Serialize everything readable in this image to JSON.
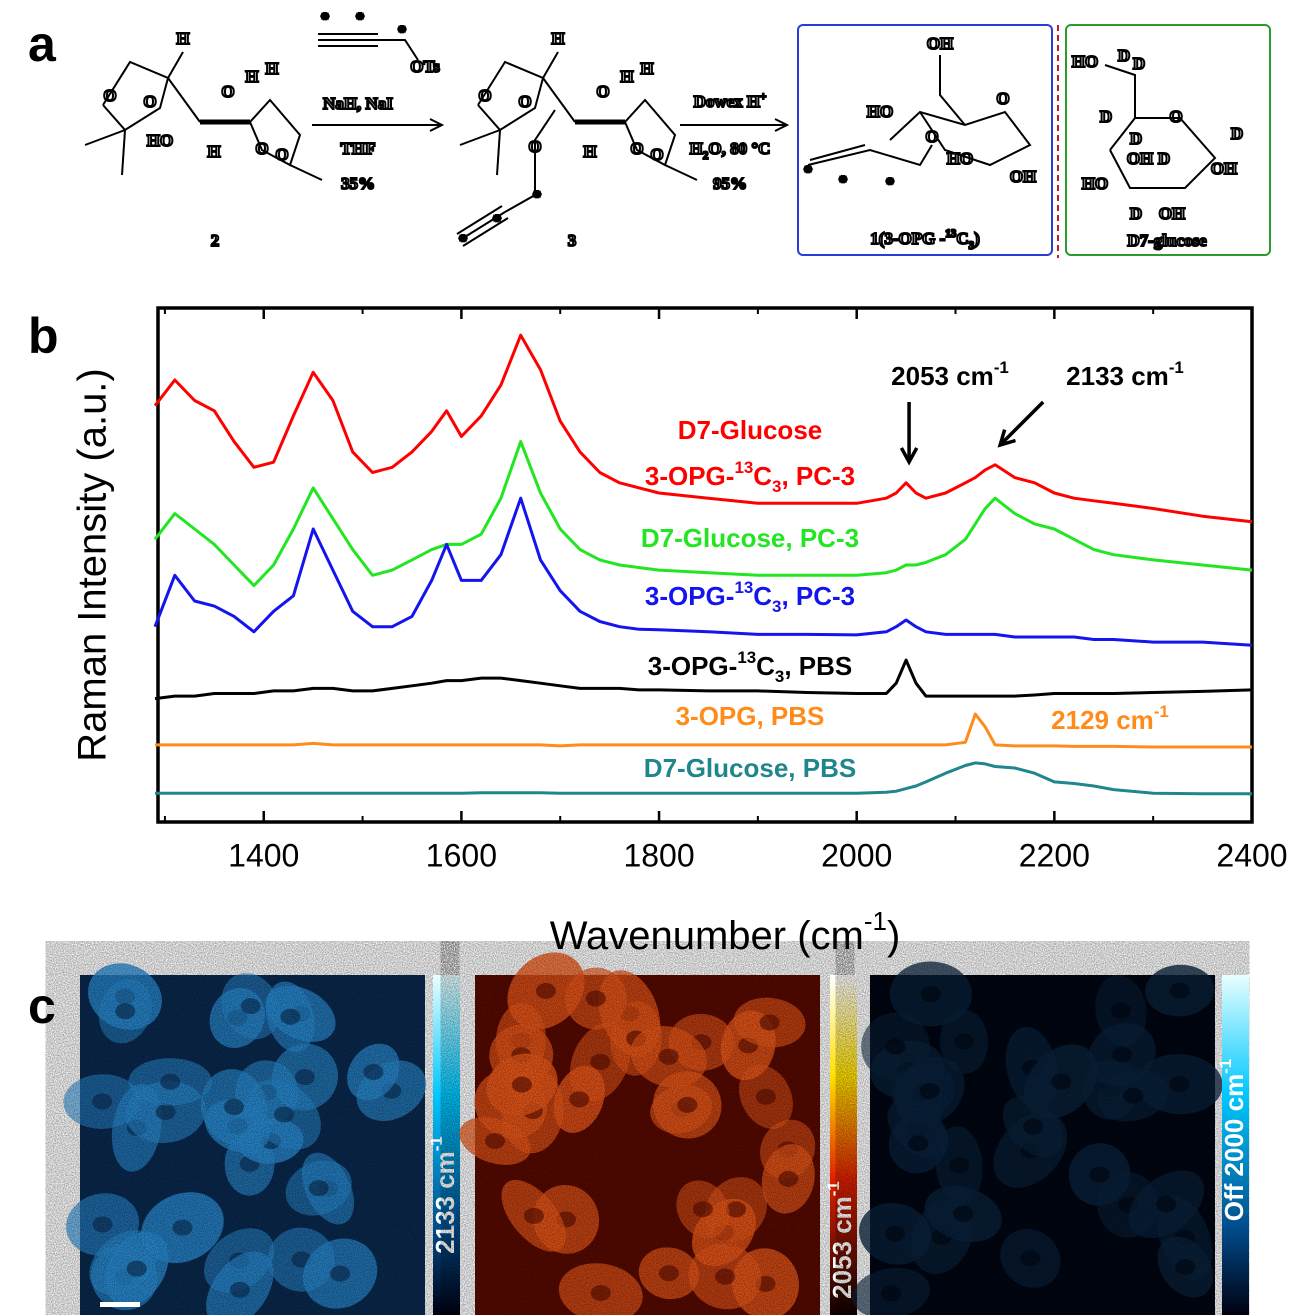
{
  "panel_letters": [
    "a",
    "b",
    "c"
  ],
  "scheme": {
    "compounds": [
      {
        "atoms": [
          "H",
          "O",
          "O",
          "O",
          "H",
          "H",
          "HO",
          "H",
          "O",
          "O"
        ],
        "label": [
          {
            "text": "2"
          }
        ]
      },
      {
        "atoms": [
          "H",
          "O",
          "O",
          "O",
          "H",
          "H",
          "O",
          "H",
          "O",
          "O",
          "*",
          "*",
          "*"
        ],
        "label": [
          {
            "text": "3"
          }
        ]
      },
      {
        "atoms": [
          "OH",
          "O",
          "HO",
          "O",
          "HO",
          "OH",
          "*",
          "*",
          "*"
        ],
        "label": [
          {
            "text": "1(3-OPG -"
          },
          {
            "text": "13",
            "sup": true
          },
          {
            "text": "C"
          },
          {
            "text": "3",
            "sub": true
          },
          {
            "text": ")"
          }
        ]
      },
      {
        "atoms": [
          "HO",
          "D",
          "D",
          "D",
          "O",
          "D",
          "D",
          "OH",
          "D",
          "OH",
          "HO",
          "D",
          "OH"
        ],
        "label": [
          {
            "text": "D7-glucose"
          }
        ]
      }
    ],
    "reagent": [
      "*",
      "*",
      "*",
      "OTs"
    ],
    "step_1": [
      [
        {
          "text": "NaH, NaI"
        }
      ],
      [
        {
          "text": "THF"
        }
      ],
      [
        {
          "text": "35%"
        }
      ]
    ],
    "step_2": [
      [
        {
          "text": "Dowex H"
        },
        {
          "text": "+",
          "sup": true
        }
      ],
      [
        {
          "text": "H"
        },
        {
          "text": "2",
          "sub": true
        },
        {
          "text": "O, 80 °C"
        }
      ],
      [
        {
          "text": "95%"
        }
      ]
    ]
  },
  "chart_data": {
    "type": "line",
    "x_label": [
      {
        "text": "Wavenumber (cm"
      },
      {
        "text": "-1",
        "sup": true
      },
      {
        "text": ")"
      }
    ],
    "y_label": "Raman Intensity (a.u.)",
    "x": [
      1290,
      1310,
      1330,
      1350,
      1370,
      1390,
      1410,
      1430,
      1450,
      1470,
      1490,
      1510,
      1530,
      1550,
      1570,
      1585,
      1600,
      1620,
      1640,
      1660,
      1680,
      1700,
      1720,
      1740,
      1760,
      1780,
      1800,
      1850,
      1900,
      1950,
      2000,
      2030,
      2040,
      2050,
      2060,
      2070,
      2090,
      2110,
      2120,
      2130,
      2140,
      2160,
      2180,
      2200,
      2220,
      2240,
      2260,
      2300,
      2350,
      2400
    ],
    "xlim": [
      1293,
      2400
    ],
    "xticks": [
      1400,
      1600,
      1800,
      2000,
      2200,
      2400
    ],
    "xminor_ticks": [
      1300,
      1500,
      1700,
      1900,
      2100,
      2300
    ],
    "ylim": [
      0,
      100
    ],
    "series": [
      {
        "color": "#ff0000",
        "label_lines": [
          [
            {
              "text": "D7-Glucose"
            }
          ],
          [
            {
              "text": "3-OPG-"
            },
            {
              "text": "13",
              "sup": true
            },
            {
              "text": "C"
            },
            {
              "text": "3",
              "sub": true
            },
            {
              "text": ", PC-3"
            }
          ]
        ],
        "values": [
          81,
          86,
          82,
          80,
          74,
          69,
          70,
          79,
          87.5,
          82,
          72,
          68,
          69,
          72,
          76,
          80,
          75,
          79,
          85,
          94.7,
          88,
          78,
          72,
          68,
          66,
          65,
          64,
          63,
          62,
          62,
          62,
          63,
          64,
          66,
          64,
          63,
          64,
          66,
          67,
          68.5,
          69.5,
          67,
          66,
          64,
          63,
          62.5,
          62,
          61,
          59.5,
          58.4
        ]
      },
      {
        "color": "#22e622",
        "label_lines": [
          [
            {
              "text": "D7-Glucose, PC-3"
            }
          ]
        ],
        "values": [
          55,
          60,
          57,
          54,
          50,
          46,
          50,
          57,
          65,
          59,
          53,
          48,
          49,
          51,
          53,
          54,
          54,
          56,
          63,
          74,
          64,
          57,
          53,
          51,
          50,
          49.5,
          49,
          48.5,
          48,
          48,
          48,
          48.5,
          49,
          50,
          50,
          50.5,
          52,
          55,
          58,
          61,
          63,
          60,
          58,
          57,
          55,
          53,
          52,
          51,
          50,
          49
        ]
      },
      {
        "color": "#1414ee",
        "label_lines": [
          [
            {
              "text": "3-OPG-"
            },
            {
              "text": "13",
              "sup": true
            },
            {
              "text": "C"
            },
            {
              "text": "3",
              "sub": true
            },
            {
              "text": ", PC-3"
            }
          ]
        ],
        "values": [
          38,
          48,
          43,
          42,
          40,
          37,
          41,
          44,
          57,
          49,
          41,
          38,
          38,
          40,
          47,
          54,
          47,
          47,
          52,
          63,
          51,
          45,
          41,
          39,
          38,
          37.5,
          37.4,
          37,
          36.5,
          36.5,
          36.4,
          37,
          38,
          39.3,
          38,
          37,
          36.5,
          36.5,
          36.5,
          36.5,
          36.5,
          36,
          36,
          36,
          36,
          35.5,
          35.5,
          35,
          35,
          34.4
        ]
      },
      {
        "color": "#000000",
        "label_lines": [
          [
            {
              "text": "3-OPG-"
            },
            {
              "text": "13",
              "sup": true
            },
            {
              "text": "C"
            },
            {
              "text": "3",
              "sub": true
            },
            {
              "text": ", PBS"
            }
          ]
        ],
        "values": [
          24,
          24.5,
          24.5,
          25,
          25,
          25,
          25.5,
          25.5,
          26,
          26,
          25.5,
          25.5,
          26,
          26.5,
          27,
          27.5,
          27.5,
          28,
          28,
          27.5,
          27,
          26.5,
          26,
          26,
          26,
          25.7,
          25.7,
          25.5,
          25.5,
          25.2,
          25,
          25,
          27,
          31.5,
          27,
          24.5,
          24.5,
          24.5,
          24.5,
          24.5,
          24.5,
          24.5,
          24.7,
          25,
          25,
          25,
          25,
          25.2,
          25.4,
          25.7
        ]
      },
      {
        "color": "#ff8c1a",
        "label_lines": [
          [
            {
              "text": "3-OPG, PBS"
            }
          ]
        ],
        "values": [
          15,
          15,
          15,
          15,
          15,
          15,
          15,
          15,
          15.3,
          15,
          15,
          15,
          15,
          15,
          15,
          15,
          15,
          15,
          15,
          15,
          15,
          14.8,
          15,
          15,
          15,
          15,
          15,
          15,
          15,
          15,
          15,
          15,
          15,
          15,
          15,
          15,
          15,
          15.5,
          21,
          18.5,
          15,
          14.8,
          14.8,
          14.8,
          14.7,
          14.7,
          14.7,
          14.6,
          14.6,
          14.6
        ]
      },
      {
        "color": "#20868e",
        "label_lines": [
          [
            {
              "text": "D7-Glucose, PBS"
            }
          ]
        ],
        "values": [
          5.6,
          5.6,
          5.6,
          5.6,
          5.6,
          5.6,
          5.6,
          5.6,
          5.6,
          5.6,
          5.6,
          5.6,
          5.6,
          5.6,
          5.6,
          5.6,
          5.6,
          5.7,
          5.7,
          5.7,
          5.7,
          5.6,
          5.6,
          5.6,
          5.6,
          5.6,
          5.6,
          5.6,
          5.6,
          5.6,
          5.6,
          5.8,
          6,
          6.5,
          7,
          7.8,
          9.5,
          11,
          11.5,
          11.3,
          10.8,
          10.5,
          9.5,
          7.8,
          7.5,
          7,
          6.3,
          5.6,
          5.5,
          5.5
        ]
      }
    ],
    "annotations": [
      {
        "parts": [
          {
            "text": "2053 cm"
          },
          {
            "text": "-1",
            "sup": true
          }
        ],
        "x": 2053,
        "arrow": true,
        "color": "#000000"
      },
      {
        "parts": [
          {
            "text": "2133 cm"
          },
          {
            "text": "-1",
            "sup": true
          }
        ],
        "x": 2133,
        "arrow": true,
        "color": "#000000"
      },
      {
        "parts": [
          {
            "text": "2129 cm"
          },
          {
            "text": "-1",
            "sup": true
          }
        ],
        "x": 2129,
        "arrow": false,
        "color": "#ff8c1a"
      }
    ]
  },
  "panel_c": {
    "colorbars": [
      [
        {
          "text": "2133 cm"
        },
        {
          "text": "-1",
          "sup": true
        }
      ],
      [
        {
          "text": "2053 cm"
        },
        {
          "text": "-1",
          "sup": true
        }
      ],
      [
        {
          "text": "Off 2000 cm"
        },
        {
          "text": "-1",
          "sup": true
        }
      ]
    ]
  }
}
